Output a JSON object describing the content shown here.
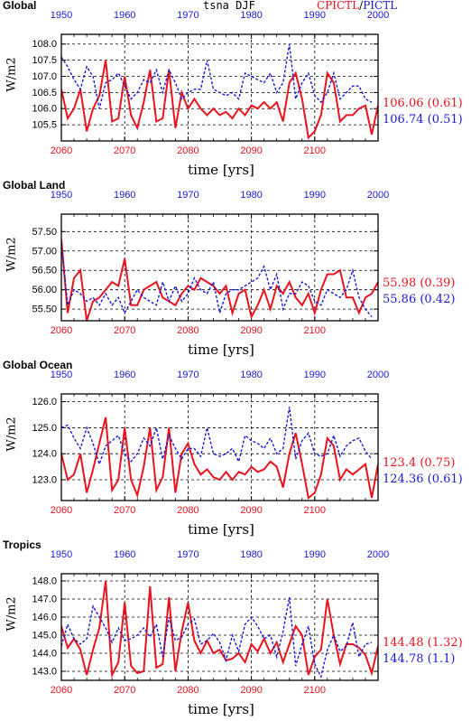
{
  "figure": {
    "center_title": "tsna DJF",
    "legend_title": {
      "cpictl": "CPICTL",
      "sep": "/",
      "pictl": "PICTL"
    },
    "xlabel": "time [yrs]",
    "ylabel": "W/m2",
    "colors": {
      "cpictl": "#e8141e",
      "pictl": "#1a1ad6",
      "grid": "#000000"
    }
  },
  "chart_data": [
    {
      "type": "line",
      "title": "Global",
      "xlabel": "time [yrs]",
      "ylabel": "W/m2",
      "x_bottom_ticks": [
        "2060",
        "2070",
        "2080",
        "2090",
        "2100"
      ],
      "x_top_ticks": [
        "1950",
        "1960",
        "1970",
        "1980",
        "1990",
        "2000"
      ],
      "y_ticks": [
        "105.5",
        "106.0",
        "106.5",
        "107.0",
        "107.5",
        "108.0"
      ],
      "ylim": [
        105.0,
        108.3
      ],
      "grid": true,
      "stats": {
        "cpictl": "106.06 (0.61)",
        "pictl": "106.74 (0.51)"
      },
      "series": [
        {
          "name": "CPICTL",
          "x_axis": "bottom",
          "x": [
            2060,
            2061,
            2062,
            2063,
            2064,
            2065,
            2066,
            2067,
            2068,
            2069,
            2070,
            2071,
            2072,
            2073,
            2074,
            2075,
            2076,
            2077,
            2078,
            2079,
            2080,
            2081,
            2082,
            2083,
            2084,
            2085,
            2086,
            2087,
            2088,
            2089,
            2090,
            2091,
            2092,
            2093,
            2094,
            2095,
            2096,
            2097,
            2098,
            2099,
            2100,
            2101,
            2102,
            2103,
            2104,
            2105,
            2106,
            2107,
            2108,
            2109,
            2110
          ],
          "values": [
            106.6,
            105.7,
            106.0,
            106.6,
            105.3,
            106.0,
            106.4,
            107.5,
            105.6,
            105.7,
            107.0,
            105.8,
            105.4,
            106.2,
            107.2,
            105.6,
            105.7,
            107.2,
            105.4,
            106.5,
            106.0,
            106.3,
            106.0,
            105.8,
            106.0,
            105.8,
            105.9,
            105.7,
            106.0,
            105.8,
            106.1,
            106.0,
            106.2,
            106.0,
            106.2,
            105.6,
            106.8,
            107.1,
            106.3,
            105.1,
            105.3,
            105.8,
            107.1,
            106.8,
            105.6,
            105.8,
            105.8,
            106.0,
            106.1,
            105.2,
            106.1
          ]
        },
        {
          "name": "PICTL",
          "x_axis": "top",
          "x": [
            1950,
            1951,
            1952,
            1953,
            1954,
            1955,
            1956,
            1957,
            1958,
            1959,
            1960,
            1961,
            1962,
            1963,
            1964,
            1965,
            1966,
            1967,
            1968,
            1969,
            1970,
            1971,
            1972,
            1973,
            1974,
            1975,
            1976,
            1977,
            1978,
            1979,
            1980,
            1981,
            1982,
            1983,
            1984,
            1985,
            1986,
            1987,
            1988,
            1989,
            1990,
            1991,
            1992,
            1993,
            1994,
            1995,
            1996,
            1997,
            1998,
            1999
          ],
          "values": [
            107.6,
            107.3,
            106.9,
            106.6,
            107.3,
            107.0,
            106.0,
            106.8,
            106.9,
            107.1,
            106.7,
            106.3,
            106.5,
            106.9,
            106.8,
            107.2,
            106.5,
            107.2,
            106.8,
            106.3,
            106.5,
            106.6,
            106.6,
            107.5,
            106.6,
            106.5,
            106.4,
            106.5,
            106.3,
            107.1,
            107.0,
            106.9,
            106.8,
            107.1,
            106.5,
            106.8,
            108.0,
            106.3,
            106.8,
            107.1,
            106.4,
            106.2,
            106.5,
            107.1,
            106.3,
            106.5,
            106.7,
            106.7,
            106.3,
            106.2
          ]
        }
      ]
    },
    {
      "type": "line",
      "title": "Global Land",
      "xlabel": "time [yrs]",
      "ylabel": "W/m2",
      "x_bottom_ticks": [
        "2060",
        "2070",
        "2080",
        "2090",
        "2100"
      ],
      "x_top_ticks": [
        "1950",
        "1960",
        "1970",
        "1980",
        "1990",
        "2000"
      ],
      "y_ticks": [
        "55.50",
        "56.00",
        "56.50",
        "57.00",
        "57.50"
      ],
      "ylim": [
        55.2,
        57.95
      ],
      "grid": true,
      "stats": {
        "cpictl": "55.98 (0.39)",
        "pictl": "55.86 (0.42)"
      },
      "series": [
        {
          "name": "CPICTL",
          "x_axis": "bottom",
          "x": [
            2060,
            2061,
            2062,
            2063,
            2064,
            2065,
            2066,
            2067,
            2068,
            2069,
            2070,
            2071,
            2072,
            2073,
            2074,
            2075,
            2076,
            2077,
            2078,
            2079,
            2080,
            2081,
            2082,
            2083,
            2084,
            2085,
            2086,
            2087,
            2088,
            2089,
            2090,
            2091,
            2092,
            2093,
            2094,
            2095,
            2096,
            2097,
            2098,
            2099,
            2100,
            2101,
            2102,
            2103,
            2104,
            2105,
            2106,
            2107,
            2108,
            2109,
            2110
          ],
          "values": [
            57.3,
            55.4,
            56.3,
            56.5,
            55.2,
            55.7,
            55.8,
            56.0,
            56.2,
            56.1,
            56.8,
            55.6,
            55.6,
            56.0,
            56.1,
            56.2,
            55.8,
            55.7,
            55.6,
            55.9,
            56.1,
            56.0,
            56.3,
            56.2,
            56.1,
            55.9,
            56.1,
            55.4,
            55.9,
            56.0,
            55.3,
            55.6,
            56.0,
            55.5,
            56.1,
            55.9,
            56.2,
            55.8,
            55.6,
            55.9,
            55.4,
            56.0,
            56.4,
            56.4,
            56.5,
            55.8,
            55.8,
            55.4,
            55.8,
            55.9,
            56.2
          ]
        },
        {
          "name": "PICTL",
          "x_axis": "top",
          "x": [
            1950,
            1951,
            1952,
            1953,
            1954,
            1955,
            1956,
            1957,
            1958,
            1959,
            1960,
            1961,
            1962,
            1963,
            1964,
            1965,
            1966,
            1967,
            1968,
            1969,
            1970,
            1971,
            1972,
            1973,
            1974,
            1975,
            1976,
            1977,
            1978,
            1979,
            1980,
            1981,
            1982,
            1983,
            1984,
            1985,
            1986,
            1987,
            1988,
            1989,
            1990,
            1991,
            1992,
            1993,
            1994,
            1995,
            1996,
            1997,
            1998,
            1999
          ],
          "values": [
            57.2,
            55.6,
            56.0,
            55.9,
            55.7,
            55.8,
            55.6,
            55.9,
            55.6,
            55.8,
            55.4,
            55.7,
            56.0,
            55.8,
            55.7,
            55.6,
            56.2,
            55.7,
            56.1,
            55.7,
            55.9,
            56.3,
            56.0,
            55.9,
            56.2,
            55.4,
            55.9,
            56.0,
            56.0,
            56.1,
            56.2,
            56.3,
            56.6,
            56.0,
            56.4,
            55.5,
            55.9,
            55.9,
            56.2,
            56.1,
            55.7,
            55.6,
            56.0,
            55.9,
            55.8,
            56.0,
            56.5,
            55.8,
            55.5,
            55.3
          ]
        }
      ]
    },
    {
      "type": "line",
      "title": "Global Ocean",
      "xlabel": "time [yrs]",
      "ylabel": "W/m2",
      "x_bottom_ticks": [
        "2060",
        "2070",
        "2080",
        "2090",
        "2100"
      ],
      "x_top_ticks": [
        "1950",
        "1960",
        "1970",
        "1980",
        "1990",
        "2000"
      ],
      "y_ticks": [
        "123.0",
        "124.0",
        "125.0",
        "126.0"
      ],
      "ylim": [
        122.2,
        126.3
      ],
      "grid": true,
      "stats": {
        "cpictl": "123.4 (0.75)",
        "pictl": "124.36 (0.61)"
      },
      "series": [
        {
          "name": "CPICTL",
          "x_axis": "bottom",
          "x": [
            2060,
            2061,
            2062,
            2063,
            2064,
            2065,
            2066,
            2067,
            2068,
            2069,
            2070,
            2071,
            2072,
            2073,
            2074,
            2075,
            2076,
            2077,
            2078,
            2079,
            2080,
            2081,
            2082,
            2083,
            2084,
            2085,
            2086,
            2087,
            2088,
            2089,
            2090,
            2091,
            2092,
            2093,
            2094,
            2095,
            2096,
            2097,
            2098,
            2099,
            2100,
            2101,
            2102,
            2103,
            2104,
            2105,
            2106,
            2107,
            2108,
            2109,
            2110
          ],
          "values": [
            124.0,
            123.0,
            123.2,
            124.0,
            122.5,
            123.4,
            124.4,
            125.4,
            122.6,
            123.0,
            125.0,
            123.0,
            122.4,
            123.5,
            125.0,
            122.6,
            123.1,
            125.0,
            122.5,
            124.0,
            124.4,
            123.6,
            123.2,
            123.4,
            123.1,
            123.0,
            123.3,
            123.0,
            123.3,
            123.2,
            123.5,
            123.3,
            123.4,
            123.7,
            123.5,
            122.7,
            124.0,
            124.8,
            123.6,
            122.3,
            122.5,
            123.2,
            124.6,
            124.3,
            123.0,
            123.4,
            123.2,
            123.4,
            123.6,
            122.3,
            123.6
          ]
        },
        {
          "name": "PICTL",
          "x_axis": "top",
          "x": [
            1950,
            1951,
            1952,
            1953,
            1954,
            1955,
            1956,
            1957,
            1958,
            1959,
            1960,
            1961,
            1962,
            1963,
            1964,
            1965,
            1966,
            1967,
            1968,
            1969,
            1970,
            1971,
            1972,
            1973,
            1974,
            1975,
            1976,
            1977,
            1978,
            1979,
            1980,
            1981,
            1982,
            1983,
            1984,
            1985,
            1986,
            1987,
            1988,
            1989,
            1990,
            1991,
            1992,
            1993,
            1994,
            1995,
            1996,
            1997,
            1998,
            1999
          ],
          "values": [
            125.0,
            125.1,
            124.6,
            124.2,
            125.0,
            124.4,
            123.6,
            124.3,
            124.5,
            124.7,
            124.0,
            123.7,
            124.0,
            124.6,
            124.3,
            125.0,
            123.8,
            124.7,
            124.2,
            123.8,
            124.2,
            124.2,
            123.9,
            125.0,
            124.0,
            123.9,
            124.0,
            124.2,
            123.7,
            124.7,
            124.5,
            124.4,
            124.2,
            124.6,
            124.0,
            124.2,
            125.8,
            123.8,
            124.5,
            124.8,
            124.0,
            123.9,
            124.0,
            124.7,
            123.9,
            124.3,
            124.5,
            124.6,
            124.1,
            123.8
          ]
        }
      ]
    },
    {
      "type": "line",
      "title": "Tropics",
      "xlabel": "time [yrs]",
      "ylabel": "W/m2",
      "x_bottom_ticks": [
        "2060",
        "2070",
        "2080",
        "2090",
        "2100"
      ],
      "x_top_ticks": [
        "1950",
        "1960",
        "1970",
        "1980",
        "1990",
        "2000"
      ],
      "y_ticks": [
        "143.0",
        "144.0",
        "145.0",
        "146.0",
        "147.0",
        "148.0"
      ],
      "ylim": [
        142.5,
        148.4
      ],
      "grid": true,
      "stats": {
        "cpictl": "144.48 (1.32)",
        "pictl": "144.78 (1.1)"
      },
      "series": [
        {
          "name": "CPICTL",
          "x_axis": "bottom",
          "x": [
            2060,
            2061,
            2062,
            2063,
            2064,
            2065,
            2066,
            2067,
            2068,
            2069,
            2070,
            2071,
            2072,
            2073,
            2074,
            2075,
            2076,
            2077,
            2078,
            2079,
            2080,
            2081,
            2082,
            2083,
            2084,
            2085,
            2086,
            2087,
            2088,
            2089,
            2090,
            2091,
            2092,
            2093,
            2094,
            2095,
            2096,
            2097,
            2098,
            2099,
            2100,
            2101,
            2102,
            2103,
            2104,
            2105,
            2106,
            2107,
            2108,
            2109,
            2110
          ],
          "values": [
            145.5,
            144.3,
            144.8,
            144.2,
            142.8,
            144.2,
            145.4,
            148.0,
            142.8,
            143.5,
            146.8,
            143.3,
            142.9,
            143.0,
            147.7,
            143.2,
            143.4,
            147.1,
            143.0,
            145.2,
            146.8,
            144.7,
            144.0,
            144.7,
            144.0,
            144.2,
            143.6,
            143.7,
            144.0,
            143.5,
            144.5,
            144.1,
            144.8,
            144.0,
            144.6,
            143.5,
            144.5,
            145.5,
            145.0,
            142.8,
            143.8,
            144.2,
            147.0,
            145.0,
            143.4,
            144.5,
            144.5,
            144.3,
            143.9,
            142.9,
            144.4
          ]
        },
        {
          "name": "PICTL",
          "x_axis": "top",
          "x": [
            1950,
            1951,
            1952,
            1953,
            1954,
            1955,
            1956,
            1957,
            1958,
            1959,
            1960,
            1961,
            1962,
            1963,
            1964,
            1965,
            1966,
            1967,
            1968,
            1969,
            1970,
            1971,
            1972,
            1973,
            1974,
            1975,
            1976,
            1977,
            1978,
            1979,
            1980,
            1981,
            1982,
            1983,
            1984,
            1985,
            1986,
            1987,
            1988,
            1989,
            1990,
            1991,
            1992,
            1993,
            1994,
            1995,
            1996,
            1997,
            1998,
            1999
          ],
          "values": [
            144.4,
            145.6,
            144.8,
            144.5,
            144.8,
            146.6,
            146.0,
            145.4,
            144.6,
            145.4,
            144.7,
            144.8,
            145.0,
            145.4,
            144.9,
            145.6,
            143.8,
            146.0,
            144.7,
            144.9,
            145.6,
            145.9,
            144.5,
            144.7,
            145.1,
            144.6,
            143.6,
            145.0,
            144.1,
            145.6,
            146.0,
            145.5,
            144.8,
            145.0,
            143.8,
            145.2,
            147.1,
            143.3,
            144.5,
            145.5,
            143.4,
            142.7,
            144.2,
            145.0,
            144.1,
            144.4,
            145.7,
            143.8,
            144.5,
            144.6
          ]
        }
      ]
    }
  ]
}
